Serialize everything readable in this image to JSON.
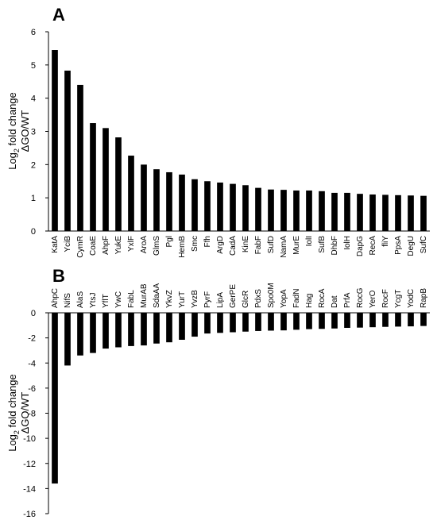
{
  "chart_data": [
    {
      "panel": "A",
      "type": "bar",
      "ylabel_line1": "Log",
      "ylabel_sub": "2",
      "ylabel_line1_rest": " fold change",
      "ylabel_line2": "ΔGO/WT",
      "ylim": [
        0,
        6
      ],
      "yticks": [
        0,
        1,
        2,
        3,
        4,
        5,
        6
      ],
      "grid": false,
      "bar_color": "#000000",
      "categories": [
        "KatA",
        "YciB",
        "CymR",
        "CoaE",
        "AhpF",
        "YukE",
        "YxlF",
        "AroA",
        "GlmS",
        "Pgl",
        "HemB",
        "Smc",
        "Ffh",
        "ArgD",
        "CadA",
        "KinE",
        "FabF",
        "SufD",
        "NamA",
        "MurE",
        "IolI",
        "SufB",
        "DhbF",
        "IolH",
        "DapG",
        "RecA",
        "fliY",
        "PpsA",
        "DegU",
        "SufC"
      ],
      "values": [
        5.45,
        4.83,
        4.4,
        3.25,
        3.1,
        2.82,
        2.27,
        2.0,
        1.86,
        1.77,
        1.7,
        1.56,
        1.5,
        1.46,
        1.42,
        1.38,
        1.3,
        1.25,
        1.24,
        1.22,
        1.22,
        1.2,
        1.15,
        1.15,
        1.12,
        1.1,
        1.09,
        1.08,
        1.07,
        1.06
      ]
    },
    {
      "panel": "B",
      "type": "bar",
      "ylabel_line1": "Log",
      "ylabel_sub": "2",
      "ylabel_line1_rest": " fold change",
      "ylabel_line2": "ΔGO/WT",
      "ylim": [
        -16,
        0
      ],
      "yticks": [
        0,
        -2,
        -4,
        -6,
        -8,
        -10,
        -12,
        -14,
        -16
      ],
      "grid": false,
      "bar_color": "#000000",
      "categories": [
        "AhpC",
        "NifS",
        "AlaS",
        "YtsJ",
        "YflT",
        "YwC",
        "FabL",
        "MurAB",
        "SdaAA",
        "YkvZ",
        "YurT",
        "YvzB",
        "PyrF",
        "LipA",
        "GerPE",
        "GlcR",
        "PdxS",
        "Spo0M",
        "YopA",
        "FadN",
        "Hag",
        "RocA",
        "Dat",
        "PrfA",
        "RocG",
        "YerO",
        "RocF",
        "YcgT",
        "YodC",
        "RapB"
      ],
      "values": [
        -13.6,
        -4.2,
        -3.4,
        -3.2,
        -2.85,
        -2.75,
        -2.65,
        -2.6,
        -2.45,
        -2.35,
        -2.15,
        -1.9,
        -1.65,
        -1.6,
        -1.55,
        -1.5,
        -1.45,
        -1.42,
        -1.4,
        -1.35,
        -1.3,
        -1.28,
        -1.25,
        -1.2,
        -1.18,
        -1.15,
        -1.12,
        -1.1,
        -1.08,
        -1.05
      ]
    }
  ]
}
